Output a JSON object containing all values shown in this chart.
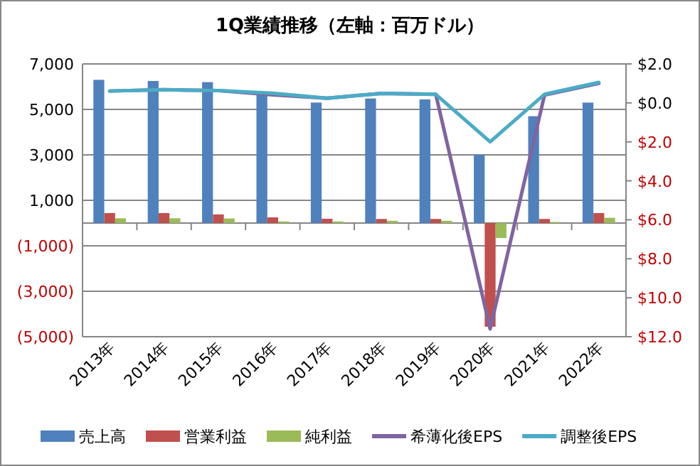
{
  "chart_data": {
    "type": "bar",
    "title": "1Q業績推移（左軸：百万ドル）",
    "categories": [
      "2013年",
      "2014年",
      "2015年",
      "2016年",
      "2017年",
      "2018年",
      "2019年",
      "2020年",
      "2021年",
      "2022年"
    ],
    "series": [
      {
        "name": "売上高",
        "color": "#4f81bd",
        "values": [
          6300,
          6250,
          6200,
          5750,
          5300,
          5480,
          5440,
          3000,
          4700,
          5300
        ]
      },
      {
        "name": "営業利益",
        "color": "#c0504d",
        "values": [
          440,
          440,
          380,
          250,
          190,
          180,
          180,
          -4560,
          180,
          440
        ]
      },
      {
        "name": "純利益",
        "color": "#9bbb59",
        "values": [
          210,
          210,
          200,
          70,
          70,
          100,
          100,
          -660,
          50,
          230
        ]
      },
      {
        "name": "希薄化後EPS",
        "type": "line",
        "axis": "y2",
        "color": "#8064a2",
        "values": [
          0.61,
          0.68,
          0.63,
          0.41,
          0.24,
          0.49,
          0.44,
          -11.6,
          0.4,
          1.0
        ]
      },
      {
        "name": "調整後EPS",
        "type": "line",
        "axis": "y2",
        "color": "#4bacc6",
        "values": [
          0.61,
          0.68,
          0.63,
          0.5,
          0.24,
          0.49,
          0.44,
          -2.0,
          0.44,
          1.05
        ]
      }
    ],
    "ylim": [
      -5000,
      7000
    ],
    "yticks": [
      {
        "value": -5000,
        "label": "(5,000)"
      },
      {
        "value": -3000,
        "label": "(3,000)"
      },
      {
        "value": -1000,
        "label": "(1,000)"
      },
      {
        "value": 1000,
        "label": "1,000"
      },
      {
        "value": 3000,
        "label": "3,000"
      },
      {
        "value": 5000,
        "label": "5,000"
      },
      {
        "value": 7000,
        "label": "7,000"
      }
    ],
    "y2lim": [
      -12,
      2
    ],
    "y2ticks": [
      {
        "value": -12,
        "label": "$12.0"
      },
      {
        "value": -10,
        "label": "$10.0"
      },
      {
        "value": -8,
        "label": "$8.0"
      },
      {
        "value": -6,
        "label": "$6.0"
      },
      {
        "value": -4,
        "label": "$4.0"
      },
      {
        "value": -2,
        "label": "$2.0"
      },
      {
        "value": 0,
        "label": "$0.0"
      },
      {
        "value": 2,
        "label": "$2.0"
      }
    ],
    "grid": "y",
    "legend": "bottom"
  }
}
